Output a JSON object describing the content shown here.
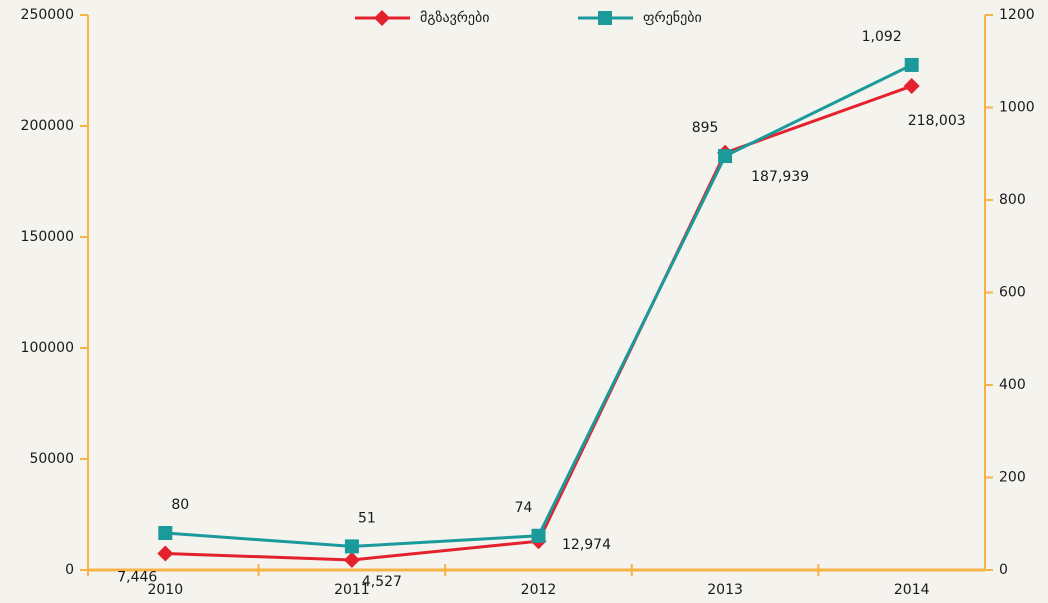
{
  "chart_data": {
    "type": "line",
    "categories": [
      "2010",
      "2011",
      "2012",
      "2013",
      "2014"
    ],
    "series": [
      {
        "name": "მგზავრები",
        "color": "#e3222e",
        "values": [
          7446,
          4527,
          12974,
          187939,
          218003
        ],
        "value_labels": [
          "7,446",
          "4,527",
          "12,974",
          "187,939",
          "218,003"
        ]
      },
      {
        "name": "ფრენები",
        "color": "#1b9a9c",
        "axis": "y2",
        "values": [
          80,
          51,
          74,
          895,
          1092
        ],
        "value_labels": [
          "80",
          "51",
          "74",
          "895",
          "1,092"
        ]
      }
    ],
    "ylim": [
      0,
      250000
    ],
    "yticks": [
      0,
      50000,
      100000,
      150000,
      200000,
      250000
    ],
    "y2lim": [
      0,
      1200
    ],
    "y2ticks": [
      0,
      200,
      400,
      600,
      800,
      1000,
      1200
    ],
    "legend": "top"
  }
}
